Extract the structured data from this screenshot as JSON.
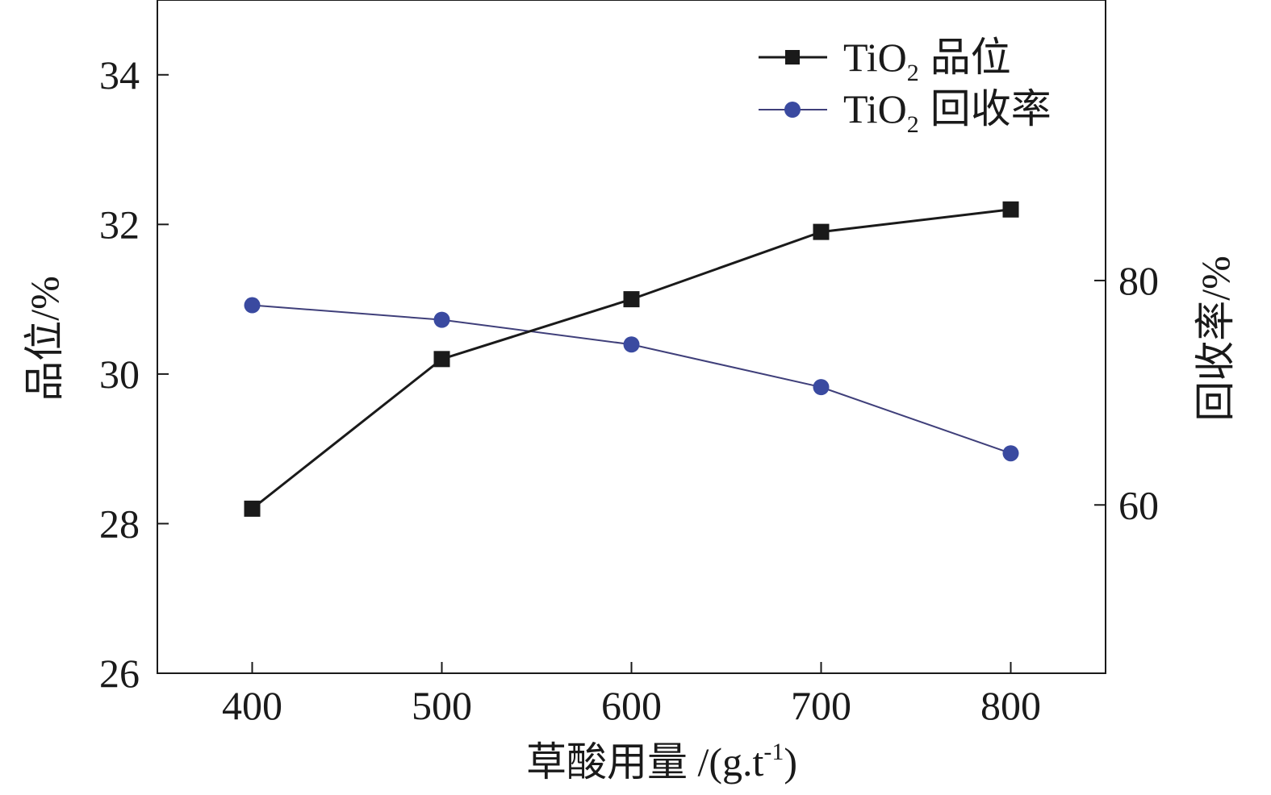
{
  "chart_data": {
    "type": "line",
    "x": [
      400,
      500,
      600,
      700,
      800
    ],
    "x_ticks": [
      "400",
      "500",
      "600",
      "700",
      "800"
    ],
    "xlim": [
      350,
      850
    ],
    "xlabel": "草酸用量 /(g.t",
    "xlabel_sup": "-1",
    "xlabel_tail": ")",
    "y_left": {
      "label": "品位/%",
      "lim": [
        26,
        35
      ],
      "ticks": [
        "26",
        "28",
        "30",
        "32",
        "34"
      ]
    },
    "y_right": {
      "label": "回收率/%",
      "lim": [
        45,
        105
      ],
      "ticks": [
        "60",
        "80"
      ]
    },
    "series": [
      {
        "name_main": "TiO",
        "name_sub": "2",
        "name_tail": "品位",
        "axis": "left",
        "marker": "square",
        "values": [
          28.2,
          30.2,
          31.0,
          31.9,
          32.2
        ]
      },
      {
        "name_main": "TiO",
        "name_sub": "2",
        "name_tail": "回收率",
        "axis": "right",
        "marker": "circle",
        "values": [
          77.8,
          76.5,
          74.3,
          70.5,
          64.6
        ]
      }
    ],
    "legend": "top-right",
    "grid": false,
    "colors": {
      "grade_line": "#1a1a1a",
      "grade_marker": "#1a1a1a",
      "recovery_line": "#3f3f7a",
      "recovery_marker": "#3a4aa0"
    }
  }
}
